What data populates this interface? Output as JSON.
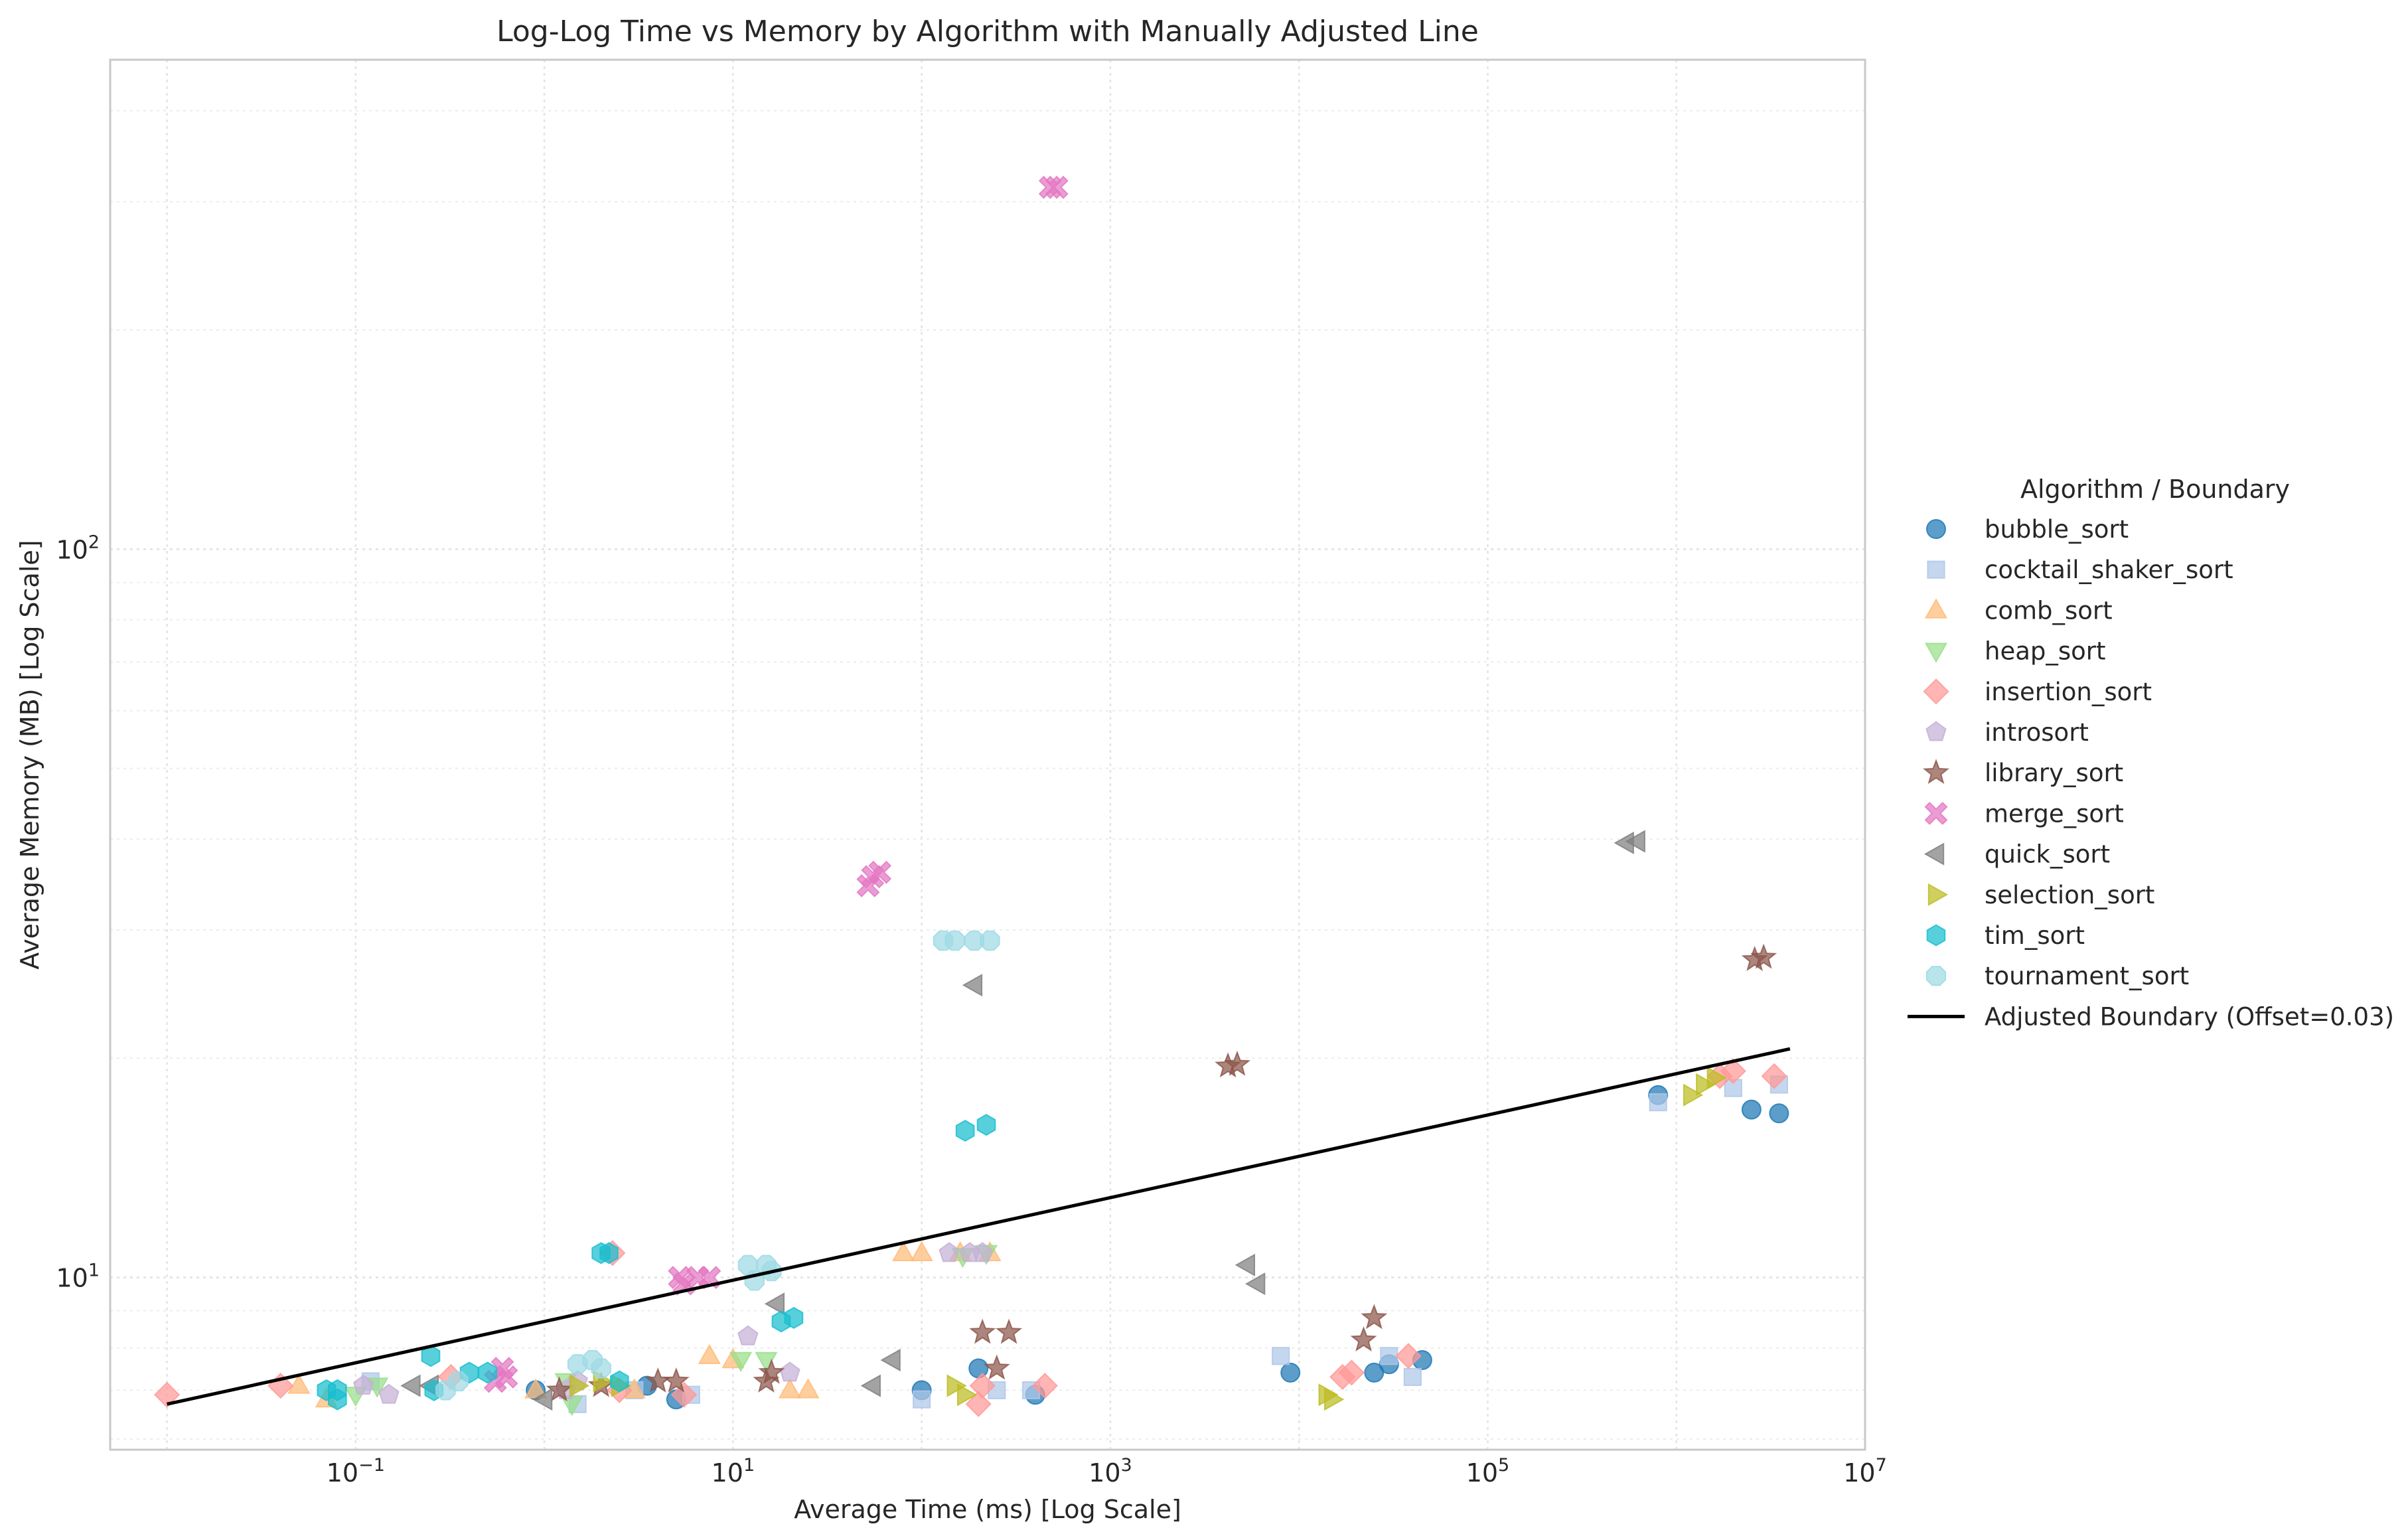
{
  "chart_data": {
    "type": "scatter",
    "title": "Log-Log Time vs Memory by Algorithm with Manually Adjusted Line",
    "xlabel": "Average Time (ms) [Log Scale]",
    "ylabel": "Average Memory (MB) [Log Scale]",
    "xscale": "log",
    "yscale": "log",
    "xlim": [
      0.005,
      10000000
    ],
    "ylim": [
      5.8,
      470
    ],
    "grid": true,
    "x_ticks": [
      {
        "base": "10",
        "exp": "−1",
        "value": 0.1
      },
      {
        "base": "10",
        "exp": "1",
        "value": 10
      },
      {
        "base": "10",
        "exp": "3",
        "value": 1000
      },
      {
        "base": "10",
        "exp": "5",
        "value": 100000
      },
      {
        "base": "10",
        "exp": "7",
        "value": 10000000
      }
    ],
    "y_ticks": [
      {
        "base": "10",
        "exp": "1",
        "value": 10
      },
      {
        "base": "10",
        "exp": "2",
        "value": 100
      }
    ],
    "legend": {
      "title": "Algorithm / Boundary",
      "position": "outside right"
    },
    "series": [
      {
        "name": "bubble_sort",
        "marker": "circle",
        "color": "#1f77b4",
        "points": [
          [
            0.9,
            7.0
          ],
          [
            3.5,
            7.1
          ],
          [
            5.0,
            6.8
          ],
          [
            100,
            7.0
          ],
          [
            200,
            7.5
          ],
          [
            400,
            6.9
          ],
          [
            9000,
            7.4
          ],
          [
            25000,
            7.4
          ],
          [
            30000,
            7.6
          ],
          [
            45000,
            7.7
          ],
          [
            800000,
            17.8
          ],
          [
            2500000,
            17.0
          ],
          [
            3500000,
            16.8
          ]
        ]
      },
      {
        "name": "cocktail_shaker_sort",
        "marker": "square",
        "color": "#aec7e8",
        "points": [
          [
            0.12,
            7.2
          ],
          [
            1.5,
            6.7
          ],
          [
            3.0,
            7.0
          ],
          [
            6.0,
            6.9
          ],
          [
            100,
            6.8
          ],
          [
            250,
            7.0
          ],
          [
            380,
            7.0
          ],
          [
            8000,
            7.8
          ],
          [
            30000,
            7.8
          ],
          [
            40000,
            7.3
          ],
          [
            800000,
            17.4
          ],
          [
            2000000,
            18.2
          ],
          [
            3500000,
            18.4
          ]
        ]
      },
      {
        "name": "comb_sort",
        "marker": "triangle-up",
        "color": "#ffbb78",
        "points": [
          [
            0.05,
            7.1
          ],
          [
            0.07,
            6.8
          ],
          [
            0.9,
            7.0
          ],
          [
            3.0,
            7.0
          ],
          [
            7.5,
            7.8
          ],
          [
            10,
            7.7
          ],
          [
            20,
            7.0
          ],
          [
            25,
            7.0
          ],
          [
            80,
            10.8
          ],
          [
            100,
            10.8
          ],
          [
            160,
            10.8
          ],
          [
            230,
            10.8
          ]
        ]
      },
      {
        "name": "heap_sort",
        "marker": "triangle-down",
        "color": "#98df8a",
        "points": [
          [
            0.1,
            6.9
          ],
          [
            0.13,
            7.1
          ],
          [
            1.3,
            7.2
          ],
          [
            1.4,
            6.7
          ],
          [
            11,
            7.7
          ],
          [
            15,
            7.7
          ],
          [
            165,
            10.7
          ],
          [
            220,
            10.8
          ]
        ]
      },
      {
        "name": "insertion_sort",
        "marker": "diamond",
        "color": "#ff9896",
        "points": [
          [
            0.01,
            6.9
          ],
          [
            0.04,
            7.1
          ],
          [
            0.32,
            7.3
          ],
          [
            2.3,
            10.8
          ],
          [
            2.5,
            7.0
          ],
          [
            5.5,
            6.9
          ],
          [
            200,
            6.7
          ],
          [
            210,
            7.1
          ],
          [
            450,
            7.1
          ],
          [
            17000,
            7.3
          ],
          [
            19000,
            7.4
          ],
          [
            38000,
            7.8
          ],
          [
            1700000,
            18.9
          ],
          [
            2000000,
            19.2
          ],
          [
            3300000,
            18.9
          ]
        ]
      },
      {
        "name": "introsort",
        "marker": "pentagon",
        "color": "#c5b0d5",
        "points": [
          [
            0.11,
            7.1
          ],
          [
            0.15,
            6.9
          ],
          [
            1.3,
            7.0
          ],
          [
            1.5,
            7.2
          ],
          [
            12,
            8.3
          ],
          [
            20,
            7.4
          ],
          [
            140,
            10.8
          ],
          [
            180,
            10.8
          ],
          [
            210,
            10.8
          ]
        ]
      },
      {
        "name": "library_sort",
        "marker": "star",
        "color": "#8c564b",
        "points": [
          [
            1.2,
            7.0
          ],
          [
            2.0,
            7.1
          ],
          [
            4.0,
            7.2
          ],
          [
            5.0,
            7.2
          ],
          [
            15,
            7.2
          ],
          [
            16,
            7.4
          ],
          [
            210,
            8.4
          ],
          [
            250,
            7.5
          ],
          [
            290,
            8.4
          ],
          [
            4200,
            19.5
          ],
          [
            4700,
            19.6
          ],
          [
            22000,
            8.2
          ],
          [
            25000,
            8.8
          ],
          [
            2600000,
            27.3
          ],
          [
            2900000,
            27.5
          ]
        ]
      },
      {
        "name": "merge_sort",
        "marker": "x-filled",
        "color": "#e377c2",
        "points": [
          [
            0.55,
            7.2
          ],
          [
            0.6,
            7.5
          ],
          [
            0.63,
            7.3
          ],
          [
            5.2,
            10.0
          ],
          [
            5.5,
            9.8
          ],
          [
            6.5,
            10.0
          ],
          [
            7.5,
            10.0
          ],
          [
            52,
            34.5
          ],
          [
            55,
            35.5
          ],
          [
            60,
            36.0
          ],
          [
            480,
            314
          ],
          [
            520,
            314
          ]
        ]
      },
      {
        "name": "quick_sort",
        "marker": "triangle-left",
        "color": "#7f7f7f",
        "points": [
          [
            0.2,
            7.1
          ],
          [
            0.25,
            7.1
          ],
          [
            1.0,
            6.8
          ],
          [
            17,
            9.2
          ],
          [
            55,
            7.1
          ],
          [
            70,
            7.7
          ],
          [
            190,
            25.2
          ],
          [
            5300,
            10.4
          ],
          [
            6000,
            9.8
          ],
          [
            540000,
            39.5
          ],
          [
            620000,
            39.7
          ]
        ]
      },
      {
        "name": "selection_sort",
        "marker": "triangle-right",
        "color": "#bcbd22",
        "points": [
          [
            1.5,
            7.1
          ],
          [
            2.0,
            7.2
          ],
          [
            2.5,
            7.1
          ],
          [
            150,
            7.1
          ],
          [
            170,
            6.9
          ],
          [
            14000,
            6.9
          ],
          [
            15000,
            6.8
          ],
          [
            1200000,
            17.8
          ],
          [
            1400000,
            18.4
          ],
          [
            1600000,
            18.8
          ]
        ]
      },
      {
        "name": "tim_sort",
        "marker": "hexagon",
        "color": "#17becf",
        "points": [
          [
            0.07,
            7.0
          ],
          [
            0.08,
            7.0
          ],
          [
            0.08,
            6.8
          ],
          [
            0.25,
            7.8
          ],
          [
            0.26,
            7.0
          ],
          [
            0.4,
            7.4
          ],
          [
            0.5,
            7.4
          ],
          [
            2.0,
            10.8
          ],
          [
            2.2,
            10.8
          ],
          [
            2.5,
            7.2
          ],
          [
            18,
            8.7
          ],
          [
            21,
            8.8
          ],
          [
            170,
            15.9
          ],
          [
            220,
            16.2
          ]
        ]
      },
      {
        "name": "tournament_sort",
        "marker": "octagon",
        "color": "#9edae5",
        "points": [
          [
            0.3,
            7.0
          ],
          [
            0.35,
            7.2
          ],
          [
            1.5,
            7.6
          ],
          [
            1.8,
            7.7
          ],
          [
            2.0,
            7.5
          ],
          [
            12,
            10.4
          ],
          [
            13,
            9.9
          ],
          [
            15,
            10.4
          ],
          [
            16,
            10.2
          ],
          [
            130,
            29.0
          ],
          [
            150,
            29.0
          ],
          [
            190,
            29.0
          ],
          [
            230,
            29.0
          ]
        ]
      }
    ],
    "boundary_line": {
      "name": "Adjusted Boundary (Offset=0.03)",
      "color": "#000000",
      "x": [
        0.01,
        4000000
      ],
      "y": [
        6.7,
        20.6
      ]
    }
  }
}
